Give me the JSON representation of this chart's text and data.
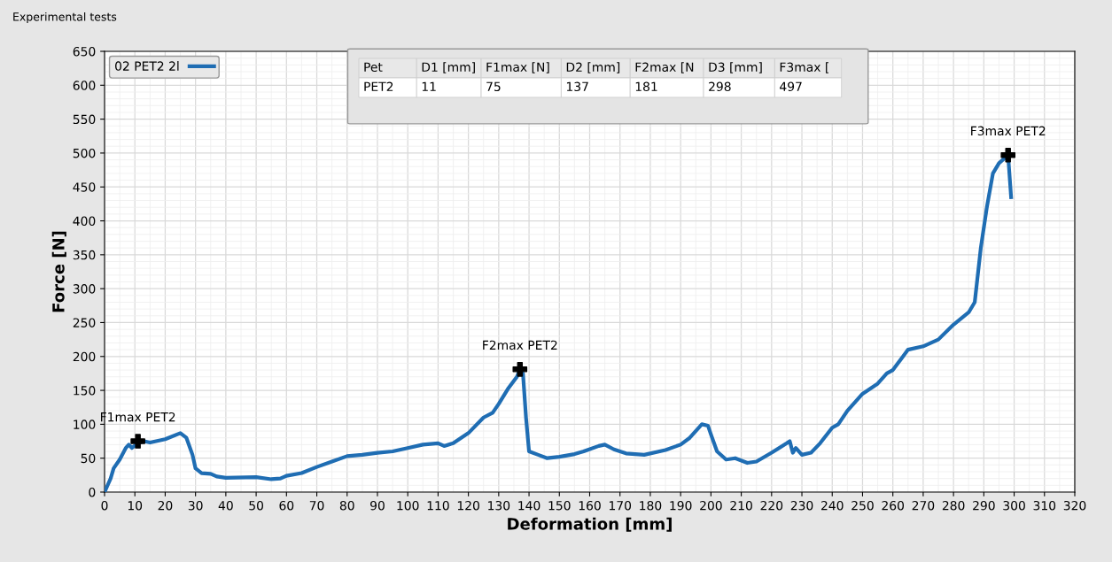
{
  "chart_data": {
    "type": "line",
    "title": "Experimental tests",
    "xlabel": "Deformation [mm]",
    "ylabel": "Force [N]",
    "xlim": [
      0,
      320
    ],
    "xticks": [
      0,
      10,
      20,
      30,
      40,
      50,
      60,
      70,
      80,
      90,
      100,
      110,
      120,
      130,
      140,
      150,
      160,
      170,
      180,
      190,
      200,
      210,
      220,
      230,
      240,
      250,
      260,
      270,
      280,
      290,
      300,
      310,
      320
    ],
    "ylim": [
      0,
      650
    ],
    "yticks": [
      0,
      50,
      100,
      150,
      200,
      250,
      300,
      350,
      400,
      450,
      500,
      550,
      600,
      650
    ],
    "grid": true,
    "legend": "top left",
    "line_style": "solid",
    "series": [
      {
        "name": "02 PET2 2l",
        "color": "#1f6db3",
        "x": [
          0,
          2,
          3,
          5,
          7,
          8,
          9,
          11,
          13,
          15,
          20,
          25,
          27,
          29,
          30,
          32,
          35,
          37,
          40,
          50,
          55,
          58,
          60,
          65,
          70,
          75,
          80,
          85,
          90,
          95,
          100,
          105,
          110,
          112,
          115,
          120,
          125,
          128,
          130,
          133,
          136,
          137,
          138,
          139,
          140,
          143,
          146,
          150,
          155,
          158,
          163,
          165,
          168,
          172,
          178,
          185,
          190,
          193,
          197,
          199,
          200,
          202,
          205,
          208,
          212,
          215,
          220,
          225,
          226,
          227,
          228,
          230,
          233,
          236,
          240,
          242,
          245,
          250,
          255,
          258,
          260,
          265,
          270,
          275,
          280,
          285,
          287,
          289,
          291,
          293,
          295,
          298,
          299
        ],
        "values": [
          0,
          20,
          35,
          48,
          65,
          70,
          65,
          72,
          75,
          73,
          78,
          87,
          80,
          55,
          35,
          28,
          27,
          23,
          21,
          22,
          19,
          20,
          24,
          28,
          37,
          45,
          53,
          55,
          58,
          60,
          65,
          70,
          72,
          68,
          72,
          87,
          110,
          117,
          130,
          152,
          170,
          181,
          175,
          110,
          60,
          55,
          50,
          52,
          56,
          60,
          68,
          70,
          63,
          57,
          55,
          62,
          70,
          80,
          100,
          98,
          85,
          60,
          48,
          50,
          43,
          45,
          58,
          72,
          75,
          58,
          65,
          55,
          58,
          72,
          95,
          100,
          120,
          145,
          160,
          175,
          180,
          210,
          215,
          225,
          247,
          265,
          280,
          360,
          420,
          470,
          485,
          497,
          435
        ]
      },
      {
        "type": "scatter",
        "color": "#000000",
        "marker": "cross",
        "x": [
          11,
          137,
          298
        ],
        "values": [
          75,
          181,
          497
        ]
      }
    ],
    "annotations": [
      {
        "text": "F1max PET2",
        "x": 11,
        "y": 75
      },
      {
        "text": "F2max PET2",
        "x": 137,
        "y": 181
      },
      {
        "text": "F3max PET2",
        "x": 298,
        "y": 497
      },
      "Pet",
      "D1 [mm]",
      "F1max [N]",
      "D2 [mm]",
      "F2max [N",
      "D3 [mm]",
      "F3max [",
      "PET2",
      "11",
      "75",
      "137",
      "181",
      "298",
      "497"
    ]
  }
}
